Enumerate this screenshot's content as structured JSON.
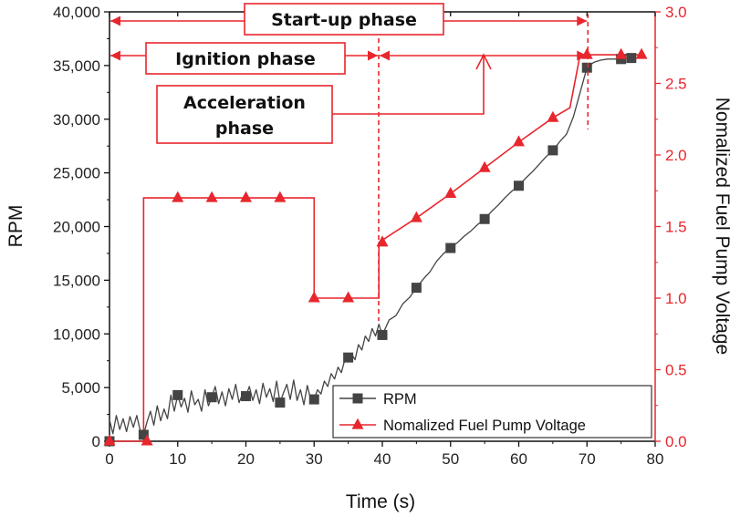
{
  "colors": {
    "rpm": "#444444",
    "fuel": "#e8262d",
    "axis": "#111111"
  },
  "chart_data": {
    "type": "line",
    "xlabel": "Time (s)",
    "ylabel": "RPM",
    "y2label": "Nomalized Fuel Pump Voltage",
    "xlim": [
      0,
      80
    ],
    "ylim": [
      0,
      40000
    ],
    "y2lim": [
      0.0,
      3.0
    ],
    "x_ticks": [
      "0",
      "10",
      "20",
      "30",
      "40",
      "50",
      "60",
      "70",
      "80"
    ],
    "y_ticks": [
      "0",
      "5,000",
      "10,000",
      "15,000",
      "20,000",
      "25,000",
      "30,000",
      "35,000",
      "40,000"
    ],
    "y2_ticks": [
      "0.0",
      "0.5",
      "1.0",
      "1.5",
      "2.0",
      "2.5",
      "3.0"
    ],
    "series": [
      {
        "name": "RPM",
        "axis": "left",
        "marker": "square",
        "markers": [
          {
            "x": 0,
            "y": 0
          },
          {
            "x": 5,
            "y": 600
          },
          {
            "x": 10,
            "y": 4300
          },
          {
            "x": 15,
            "y": 4100
          },
          {
            "x": 20,
            "y": 4200
          },
          {
            "x": 25,
            "y": 3600
          },
          {
            "x": 30,
            "y": 3900
          },
          {
            "x": 35,
            "y": 7800
          },
          {
            "x": 40,
            "y": 9900
          },
          {
            "x": 45,
            "y": 14300
          },
          {
            "x": 50,
            "y": 18000
          },
          {
            "x": 55,
            "y": 20700
          },
          {
            "x": 60,
            "y": 23800
          },
          {
            "x": 65,
            "y": 27100
          },
          {
            "x": 70,
            "y": 34800
          },
          {
            "x": 75,
            "y": 35600
          },
          {
            "x": 76.5,
            "y": 35700
          }
        ],
        "line": [
          [
            0,
            2000
          ],
          [
            0.5,
            700
          ],
          [
            1,
            2400
          ],
          [
            1.5,
            1100
          ],
          [
            2,
            2100
          ],
          [
            2.5,
            900
          ],
          [
            3,
            2300
          ],
          [
            3.5,
            1300
          ],
          [
            4,
            2400
          ],
          [
            4.5,
            1000
          ],
          [
            5,
            600
          ],
          [
            5.5,
            1800
          ],
          [
            6,
            2800
          ],
          [
            6.5,
            1500
          ],
          [
            7,
            3300
          ],
          [
            7.5,
            1900
          ],
          [
            8,
            3000
          ],
          [
            8.5,
            2100
          ],
          [
            9,
            4300
          ],
          [
            9.5,
            2800
          ],
          [
            10,
            4300
          ],
          [
            10.5,
            3200
          ],
          [
            11,
            4000
          ],
          [
            11.5,
            2700
          ],
          [
            12,
            4700
          ],
          [
            12.5,
            3400
          ],
          [
            13,
            3900
          ],
          [
            13.5,
            2800
          ],
          [
            14,
            4800
          ],
          [
            14.5,
            3300
          ],
          [
            15,
            4100
          ],
          [
            15.5,
            5100
          ],
          [
            16,
            3500
          ],
          [
            16.5,
            4600
          ],
          [
            17,
            3300
          ],
          [
            17.5,
            4900
          ],
          [
            18,
            3900
          ],
          [
            18.5,
            5300
          ],
          [
            19,
            3600
          ],
          [
            19.5,
            4400
          ],
          [
            20,
            4200
          ],
          [
            20.5,
            5100
          ],
          [
            21,
            3800
          ],
          [
            21.5,
            4800
          ],
          [
            22,
            3500
          ],
          [
            22.5,
            5400
          ],
          [
            23,
            4100
          ],
          [
            23.5,
            4900
          ],
          [
            24,
            3700
          ],
          [
            24.5,
            5600
          ],
          [
            25,
            3600
          ],
          [
            25.5,
            4500
          ],
          [
            26,
            5300
          ],
          [
            26.5,
            3900
          ],
          [
            27,
            5700
          ],
          [
            27.5,
            3800
          ],
          [
            28,
            4800
          ],
          [
            28.5,
            3400
          ],
          [
            29,
            5200
          ],
          [
            29.5,
            3900
          ],
          [
            30,
            3900
          ],
          [
            30.5,
            4800
          ],
          [
            31,
            4400
          ],
          [
            31.5,
            5600
          ],
          [
            32,
            5100
          ],
          [
            32.5,
            6300
          ],
          [
            33,
            5800
          ],
          [
            33.5,
            6900
          ],
          [
            34,
            6400
          ],
          [
            34.5,
            7600
          ],
          [
            35,
            7800
          ],
          [
            35.5,
            8100
          ],
          [
            36,
            7600
          ],
          [
            36.5,
            9000
          ],
          [
            37,
            8500
          ],
          [
            37.5,
            9800
          ],
          [
            38,
            9300
          ],
          [
            38.5,
            10500
          ],
          [
            39,
            9800
          ],
          [
            39.5,
            10900
          ],
          [
            40,
            9900
          ],
          [
            41,
            11300
          ],
          [
            42,
            11700
          ],
          [
            43,
            12800
          ],
          [
            44,
            13400
          ],
          [
            45,
            14300
          ],
          [
            46,
            15100
          ],
          [
            47,
            15800
          ],
          [
            48,
            16800
          ],
          [
            49,
            17500
          ],
          [
            50,
            18000
          ],
          [
            51,
            18500
          ],
          [
            52,
            19100
          ],
          [
            53,
            19600
          ],
          [
            54,
            20200
          ],
          [
            55,
            20700
          ],
          [
            56,
            21400
          ],
          [
            57,
            22000
          ],
          [
            58,
            22700
          ],
          [
            59,
            23300
          ],
          [
            60,
            23800
          ],
          [
            61,
            24500
          ],
          [
            62,
            25100
          ],
          [
            63,
            25800
          ],
          [
            64,
            26500
          ],
          [
            65,
            27100
          ],
          [
            66,
            27900
          ],
          [
            67,
            28600
          ],
          [
            68,
            30200
          ],
          [
            69,
            32500
          ],
          [
            70,
            34800
          ],
          [
            71,
            35300
          ],
          [
            72,
            35500
          ],
          [
            73,
            35600
          ],
          [
            74,
            35600
          ],
          [
            75,
            35600
          ],
          [
            76,
            35700
          ],
          [
            76.5,
            35700
          ]
        ]
      },
      {
        "name": "Nomalized Fuel Pump Voltage",
        "axis": "right",
        "marker": "triangle",
        "markers": [
          {
            "x": 0,
            "y": 0
          },
          {
            "x": 5.5,
            "y": 0
          },
          {
            "x": 10,
            "y": 1.7
          },
          {
            "x": 15,
            "y": 1.7
          },
          {
            "x": 20,
            "y": 1.7
          },
          {
            "x": 25,
            "y": 1.7
          },
          {
            "x": 30,
            "y": 1.0
          },
          {
            "x": 35,
            "y": 1.0
          },
          {
            "x": 40,
            "y": 1.39
          },
          {
            "x": 45,
            "y": 1.56
          },
          {
            "x": 50,
            "y": 1.73
          },
          {
            "x": 55,
            "y": 1.91
          },
          {
            "x": 60,
            "y": 2.09
          },
          {
            "x": 65,
            "y": 2.26
          },
          {
            "x": 70,
            "y": 2.7
          },
          {
            "x": 75,
            "y": 2.7
          },
          {
            "x": 78,
            "y": 2.7
          }
        ],
        "line": [
          [
            0,
            0
          ],
          [
            5,
            0
          ],
          [
            5,
            1.7
          ],
          [
            30,
            1.7
          ],
          [
            30,
            1.0
          ],
          [
            39.5,
            1.0
          ],
          [
            39.5,
            1.39
          ],
          [
            45,
            1.56
          ],
          [
            50,
            1.73
          ],
          [
            55,
            1.91
          ],
          [
            60,
            2.09
          ],
          [
            65,
            2.26
          ],
          [
            67.5,
            2.33
          ],
          [
            69,
            2.7
          ],
          [
            78,
            2.7
          ]
        ]
      }
    ],
    "annotations": {
      "startup": {
        "label": "Start-up phase",
        "x_start": 0,
        "x_end": 70
      },
      "ignition": {
        "label": "Ignition phase",
        "x_start": 0,
        "x_end": 40
      },
      "acceleration": {
        "label_line1": "Acceleration",
        "label_line2": "phase",
        "x_start": 40,
        "x_end": 70
      },
      "divider_times": [
        40,
        70
      ]
    },
    "legend": {
      "placement": "bottom-right",
      "items": [
        "RPM",
        "Nomalized Fuel Pump Voltage"
      ]
    }
  }
}
